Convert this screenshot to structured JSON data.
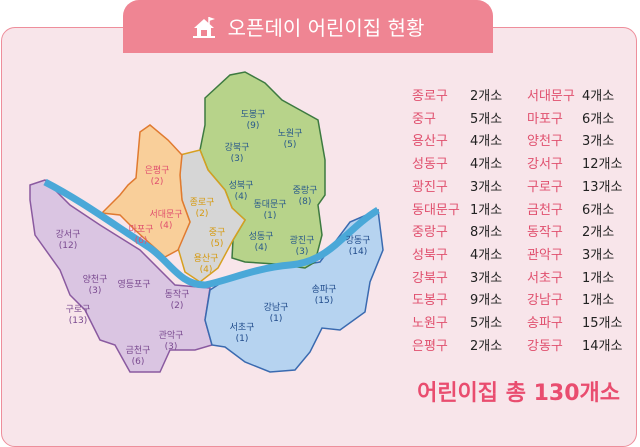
{
  "header": {
    "title": "오픈데이 어린이집 현황",
    "icon": "house-flag-icon"
  },
  "colors": {
    "header": "#ef8593",
    "name_text": "#e0506e",
    "river": "#4aa8d8"
  },
  "map": {
    "districts": [
      {
        "name": "도봉구",
        "count": "(9)",
        "region": "green"
      },
      {
        "name": "노원구",
        "count": "(5)",
        "region": "green"
      },
      {
        "name": "강북구",
        "count": "(3)",
        "region": "green"
      },
      {
        "name": "은평구",
        "count": "(2)",
        "region": "orange"
      },
      {
        "name": "성북구",
        "count": "(4)",
        "region": "green"
      },
      {
        "name": "중랑구",
        "count": "(8)",
        "region": "green"
      },
      {
        "name": "종로구",
        "count": "(2)",
        "region": "gray"
      },
      {
        "name": "동대문구",
        "count": "(1)",
        "region": "green"
      },
      {
        "name": "서대문구",
        "count": "(4)",
        "region": "orange"
      },
      {
        "name": "마포구",
        "count": "(6)",
        "region": "orange"
      },
      {
        "name": "중구",
        "count": "(5)",
        "region": "gray"
      },
      {
        "name": "성동구",
        "count": "(4)",
        "region": "green"
      },
      {
        "name": "광진구",
        "count": "(3)",
        "region": "green"
      },
      {
        "name": "강서구",
        "count": "(12)",
        "region": "purple"
      },
      {
        "name": "강동구",
        "count": "(14)",
        "region": "blue"
      },
      {
        "name": "용산구",
        "count": "(4)",
        "region": "gray"
      },
      {
        "name": "양천구",
        "count": "(3)",
        "region": "purple"
      },
      {
        "name": "영등포구",
        "count": "",
        "region": "purple"
      },
      {
        "name": "동작구",
        "count": "(2)",
        "region": "purple"
      },
      {
        "name": "송파구",
        "count": "(15)",
        "region": "blue"
      },
      {
        "name": "강남구",
        "count": "(1)",
        "region": "blue"
      },
      {
        "name": "구로구",
        "count": "(13)",
        "region": "purple"
      },
      {
        "name": "서초구",
        "count": "(1)",
        "region": "blue"
      },
      {
        "name": "관악구",
        "count": "(3)",
        "region": "purple"
      },
      {
        "name": "금천구",
        "count": "(6)",
        "region": "purple"
      }
    ]
  },
  "legend": {
    "left": [
      {
        "name": "종로구",
        "value": "2개소"
      },
      {
        "name": "중구",
        "value": "5개소"
      },
      {
        "name": "용산구",
        "value": "4개소"
      },
      {
        "name": "성동구",
        "value": "4개소"
      },
      {
        "name": "광진구",
        "value": "3개소"
      },
      {
        "name": "동대문구",
        "value": "1개소"
      },
      {
        "name": "중랑구",
        "value": "8개소"
      },
      {
        "name": "성북구",
        "value": "4개소"
      },
      {
        "name": "강북구",
        "value": "3개소"
      },
      {
        "name": "도봉구",
        "value": "9개소"
      },
      {
        "name": "노원구",
        "value": "5개소"
      },
      {
        "name": "은평구",
        "value": "2개소"
      }
    ],
    "right": [
      {
        "name": "서대문구",
        "value": "4개소"
      },
      {
        "name": "마포구",
        "value": "6개소"
      },
      {
        "name": "양천구",
        "value": "3개소"
      },
      {
        "name": "강서구",
        "value": "12개소"
      },
      {
        "name": "구로구",
        "value": "13개소"
      },
      {
        "name": "금천구",
        "value": "6개소"
      },
      {
        "name": "동작구",
        "value": "2개소"
      },
      {
        "name": "관악구",
        "value": "3개소"
      },
      {
        "name": "서초구",
        "value": "1개소"
      },
      {
        "name": "강남구",
        "value": "1개소"
      },
      {
        "name": "송파구",
        "value": "15개소"
      },
      {
        "name": "강동구",
        "value": "14개소"
      }
    ]
  },
  "total": "어린이집 총 130개소"
}
